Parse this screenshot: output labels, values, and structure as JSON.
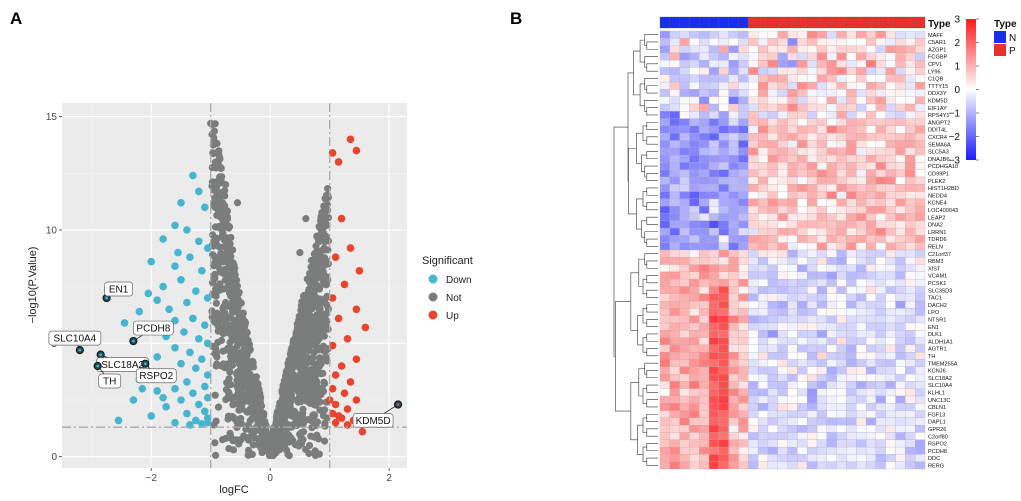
{
  "figure": {
    "panel_a_label": "A",
    "panel_b_label": "B"
  },
  "chart_data": [
    {
      "type": "scatter",
      "title": "",
      "xlabel": "logFC",
      "ylabel": "−log10(P.Value)",
      "xlim": [
        -3.5,
        2.3
      ],
      "ylim": [
        -0.5,
        15.6
      ],
      "x_ticks": [
        -2,
        0,
        2
      ],
      "y_ticks": [
        0,
        5,
        10,
        15
      ],
      "x_tick_labels": [
        "−2",
        "0",
        "2"
      ],
      "y_tick_labels": [
        "0",
        "5",
        "10",
        "15"
      ],
      "thresholds": {
        "logFC": [
          -1,
          1
        ],
        "neg_log10_p": 1.3
      },
      "grid": true,
      "legend": {
        "title": "Significant",
        "position": "right",
        "entries": [
          {
            "name": "Down",
            "color": "#45b5d0"
          },
          {
            "name": "Not",
            "color": "#7a7d7b"
          },
          {
            "name": "Up",
            "color": "#e8442e"
          }
        ]
      },
      "labeled_genes": [
        {
          "gene": "EN1",
          "x": -2.75,
          "y": 7.0
        },
        {
          "gene": "SLC10A4",
          "x": -3.2,
          "y": 4.7
        },
        {
          "gene": "PCDH8",
          "x": -2.3,
          "y": 5.1
        },
        {
          "gene": "SLC18A2",
          "x": -2.85,
          "y": 4.5
        },
        {
          "gene": "TH",
          "x": -2.9,
          "y": 4.0
        },
        {
          "gene": "RSPO2",
          "x": -2.1,
          "y": 4.1
        },
        {
          "gene": "KDM5D",
          "x": 2.15,
          "y": 2.3
        }
      ],
      "series": [
        {
          "name": "Down",
          "points": [
            [
              -1.3,
              12.4
            ],
            [
              -1.2,
              11.7
            ],
            [
              -1.5,
              11.2
            ],
            [
              -1.1,
              11.0
            ],
            [
              -1.6,
              10.2
            ],
            [
              -1.4,
              10.0
            ],
            [
              -1.2,
              9.5
            ],
            [
              -1.05,
              9.2
            ],
            [
              -1.8,
              9.6
            ],
            [
              -1.35,
              8.8
            ],
            [
              -1.6,
              8.4
            ],
            [
              -2.0,
              8.6
            ],
            [
              -1.15,
              8.2
            ],
            [
              -1.5,
              7.8
            ],
            [
              -1.8,
              7.5
            ],
            [
              -1.25,
              7.3
            ],
            [
              -1.05,
              7.0
            ],
            [
              -1.4,
              6.8
            ],
            [
              -1.7,
              6.5
            ],
            [
              -2.2,
              6.4
            ],
            [
              -1.9,
              6.9
            ],
            [
              -1.6,
              6.0
            ],
            [
              -1.3,
              6.1
            ],
            [
              -1.1,
              5.8
            ],
            [
              -2.0,
              5.6
            ],
            [
              -1.75,
              5.3
            ],
            [
              -1.45,
              5.5
            ],
            [
              -1.2,
              5.2
            ],
            [
              -1.05,
              5.0
            ],
            [
              -1.6,
              4.8
            ],
            [
              -1.35,
              4.6
            ],
            [
              -1.9,
              4.4
            ],
            [
              -1.15,
              4.3
            ],
            [
              -1.5,
              4.1
            ],
            [
              -1.25,
              3.9
            ],
            [
              -1.7,
              3.7
            ],
            [
              -1.05,
              3.6
            ],
            [
              -2.2,
              3.4
            ],
            [
              -1.4,
              3.3
            ],
            [
              -1.1,
              3.1
            ],
            [
              -1.6,
              3.0
            ],
            [
              -1.3,
              2.8
            ],
            [
              -1.9,
              2.9
            ],
            [
              -1.05,
              2.6
            ],
            [
              -1.5,
              2.5
            ],
            [
              -1.2,
              2.3
            ],
            [
              -1.75,
              2.2
            ],
            [
              -1.1,
              2.0
            ],
            [
              -1.4,
              1.9
            ],
            [
              -1.05,
              1.7
            ],
            [
              -1.25,
              1.6
            ],
            [
              -1.6,
              1.5
            ],
            [
              -2.0,
              1.8
            ],
            [
              -1.15,
              1.45
            ],
            [
              -1.35,
              1.4
            ],
            [
              -1.05,
              1.5
            ],
            [
              -2.3,
              2.5
            ],
            [
              -2.6,
              3.3
            ],
            [
              -2.45,
              5.9
            ],
            [
              -2.05,
              7.2
            ],
            [
              -2.55,
              1.6
            ],
            [
              -1.8,
              2.6
            ],
            [
              -2.15,
              3.0
            ],
            [
              -1.55,
              9.0
            ]
          ]
        },
        {
          "name": "Up",
          "points": [
            [
              1.35,
              14.0
            ],
            [
              1.45,
              13.5
            ],
            [
              1.05,
              13.4
            ],
            [
              1.15,
              13.0
            ],
            [
              1.2,
              10.5
            ],
            [
              1.35,
              9.2
            ],
            [
              1.1,
              8.8
            ],
            [
              1.5,
              8.2
            ],
            [
              1.25,
              7.6
            ],
            [
              1.05,
              7.0
            ],
            [
              1.45,
              6.5
            ],
            [
              1.15,
              6.1
            ],
            [
              1.6,
              5.7
            ],
            [
              1.3,
              5.2
            ],
            [
              1.05,
              4.9
            ],
            [
              1.45,
              4.3
            ],
            [
              1.2,
              4.0
            ],
            [
              1.1,
              3.6
            ],
            [
              1.35,
              3.3
            ],
            [
              1.05,
              3.0
            ],
            [
              1.25,
              2.8
            ],
            [
              1.45,
              2.5
            ],
            [
              1.1,
              2.3
            ],
            [
              1.3,
              2.1
            ],
            [
              1.05,
              1.9
            ],
            [
              1.2,
              1.7
            ],
            [
              1.4,
              1.6
            ],
            [
              1.1,
              1.5
            ],
            [
              1.55,
              1.1
            ],
            [
              1.3,
              1.4
            ],
            [
              1.15,
              1.8
            ],
            [
              1.0,
              2.5
            ]
          ]
        },
        {
          "name": "Not",
          "points": "dense cloud centered at logFC 0 within ±1, −log10(P) 0 to 14.7"
        }
      ]
    },
    {
      "type": "heatmap",
      "title": "",
      "annotation_title": "Type",
      "groups": [
        {
          "name": "N",
          "color": "#1a2ef0",
          "n": 9
        },
        {
          "name": "P",
          "color": "#e8302c",
          "n": 18
        }
      ],
      "color_scale": {
        "min": -3,
        "max": 3,
        "low": "#1a1aff",
        "mid": "#ffffff",
        "high": "#ff1a1a",
        "ticks": [
          "3",
          "2",
          "1",
          "0",
          "−1",
          "−2",
          "−3"
        ]
      },
      "genes": [
        "MAFF",
        "C5AR1",
        "AZGP1",
        "FCGBP",
        "CPVL",
        "LY96",
        "C1QB",
        "TTTY15",
        "DDX3Y",
        "KDM5D",
        "EIF1AY",
        "RPS4Y1",
        "ANGPT2",
        "DDIT4L",
        "CXCR4",
        "SEMA6A",
        "SLC5A3",
        "DNAJB6",
        "PCDHGA10",
        "CD99P1",
        "PLEK2",
        "HIST1H2BD",
        "NEDD4",
        "KCNE4",
        "LOC400043",
        "LEAP2",
        "DNA2",
        "LRRN1",
        "TDRD6",
        "RELN",
        "C21orf37",
        "RBM3",
        "XIST",
        "VCAM1",
        "PCSK1",
        "SLC35D3",
        "TAC1",
        "DACH2",
        "LPO",
        "NTSR1",
        "EN1",
        "DLK1",
        "ALDH1A1",
        "AGTR1",
        "TH",
        "TMEM255A",
        "KCNJ6",
        "SLC18A2",
        "SLC10A4",
        "KLHL1",
        "UNC13C",
        "CBLN1",
        "FGF13",
        "DAPL1",
        "GPR26",
        "C2orf80",
        "RSPO2",
        "PCDH8",
        "DDC",
        "RERG"
      ],
      "gene_blocks": [
        {
          "genes_from": "MAFF",
          "genes_to": "RPS4Y1",
          "pattern": "mixed"
        },
        {
          "genes_from": "ANGPT2",
          "genes_to": "RELN",
          "pattern": "N low, P high"
        },
        {
          "genes_from": "C21orf37",
          "genes_to": "RERG",
          "pattern": "N high, P low"
        }
      ]
    }
  ]
}
